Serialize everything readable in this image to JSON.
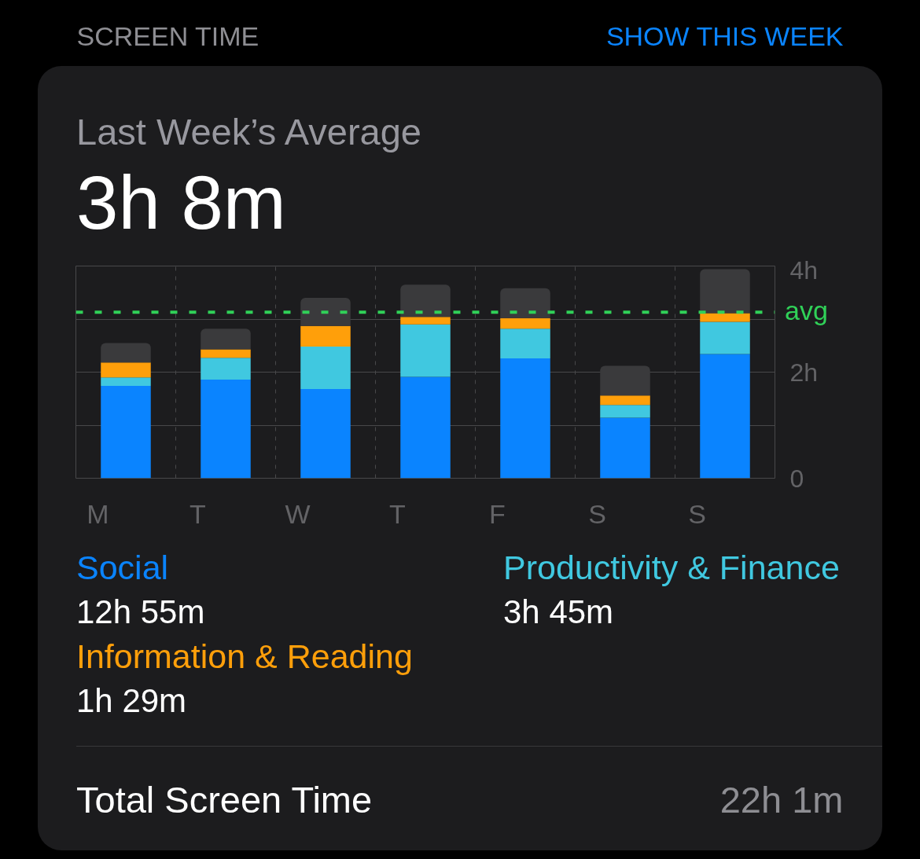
{
  "chart_data": {
    "type": "bar",
    "stacked": true,
    "title": "Last Week’s Average",
    "subtitle": "3h 8m",
    "categories": [
      "M",
      "T",
      "W",
      "T",
      "F",
      "S",
      "S"
    ],
    "series": [
      {
        "name": "Social",
        "color": "#0a84ff",
        "values": [
          1.74,
          1.86,
          1.68,
          1.91,
          2.26,
          1.14,
          2.34
        ]
      },
      {
        "name": "Productivity & Finance",
        "color": "#40c8e0",
        "values": [
          0.16,
          0.41,
          0.8,
          0.99,
          0.56,
          0.24,
          0.61
        ]
      },
      {
        "name": "Information & Reading",
        "color": "#ff9f0a",
        "values": [
          0.28,
          0.16,
          0.39,
          0.14,
          0.2,
          0.18,
          0.16
        ]
      },
      {
        "color": "#3a3a3c",
        "values": [
          0.37,
          0.39,
          0.53,
          0.61,
          0.56,
          0.56,
          0.83
        ]
      }
    ],
    "ylim": [
      0,
      4
    ],
    "yticks": [
      {
        "value": 0,
        "label": "0"
      },
      {
        "value": 1,
        "label": null
      },
      {
        "value": 2,
        "label": "2h"
      },
      {
        "value": 3,
        "label": null
      },
      {
        "value": 4,
        "label": "4h"
      }
    ],
    "ref_lines": [
      {
        "axis": "y",
        "value": 3.13,
        "label": "avg",
        "color": "#30d158",
        "line_style": "dashed"
      }
    ],
    "grid": true,
    "annotations": [
      "SCREEN TIME",
      "SHOW THIS WEEK",
      "12h 55m",
      "3h 45m",
      "1h 29m",
      "Total Screen Time",
      "22h 1m"
    ]
  }
}
